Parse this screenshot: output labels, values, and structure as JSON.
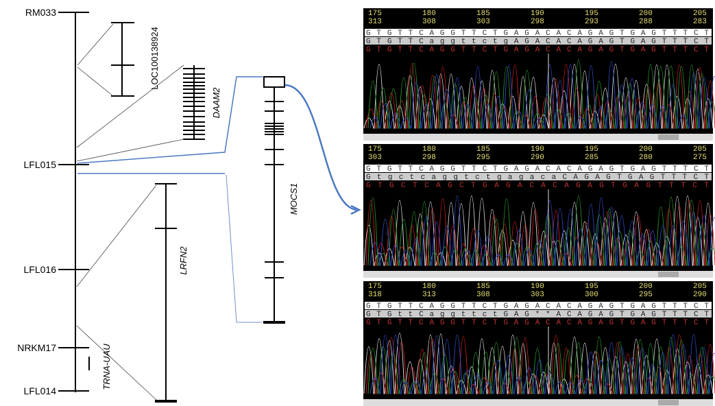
{
  "map": {
    "markers": [
      "RM033",
      "LFL015",
      "LFL016",
      "NRKM17",
      "LFL014"
    ],
    "genes": [
      "LOC100138924",
      "DAAM2",
      "MOCS1",
      "LRFN2",
      "TRNA-UAU"
    ]
  },
  "panels": [
    {
      "positions": [
        "175",
        "180",
        "185",
        "190",
        "195",
        "200",
        "205"
      ],
      "ref_positions": [
        "313",
        "308",
        "303",
        "298",
        "293",
        "288",
        "283"
      ],
      "sequences": [
        "GTGTTCAGGTTCTGAGACACAGAGTGAGTTTCT",
        "GTGTTCaggttctgAGACACAGAGTGAGTTTCT",
        "GTGTTCAGGTTCTGAGACACAGAGTGAGTTTCT"
      ]
    },
    {
      "positions": [
        "175",
        "180",
        "185",
        "190",
        "195",
        "200",
        "205"
      ],
      "ref_positions": [
        "303",
        "298",
        "295",
        "290",
        "285",
        "280",
        "275"
      ],
      "sequences": [
        "GTGTTCAGGTTCTGAGACACAGAGTGAGTTTCT",
        "GtgctcaggtctgagacaCAGAGTGAGTTTCT",
        "GTGCTCAGCTGAGACACAGAGTGAGTTTCT"
      ]
    },
    {
      "positions": [
        "175",
        "180",
        "185",
        "190",
        "195",
        "200",
        "205"
      ],
      "ref_positions": [
        "318",
        "313",
        "308",
        "303",
        "300",
        "295",
        "290"
      ],
      "sequences": [
        "GTGTTCAGGTTCTGAGACACAGAGTGAGTTTCT",
        "GTGttCaggttctGAG**ACAGAGTGAGTTTCT",
        "GTGTTCAGGTTCTGAGACACAGAGTGAGTTTCT"
      ]
    }
  ]
}
